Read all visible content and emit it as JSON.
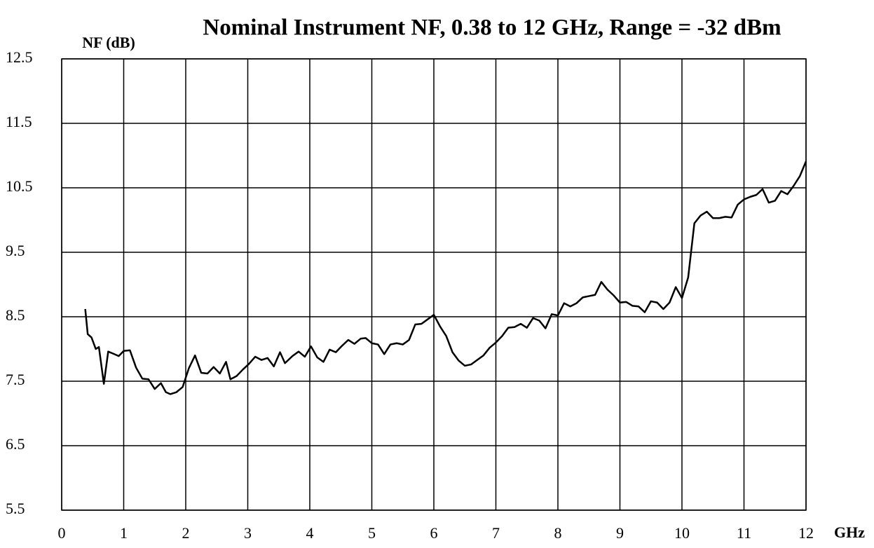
{
  "chart_data": {
    "type": "line",
    "title": "Nominal Instrument NF, 0.38 to 12 GHz, Range = -32 dBm",
    "y_label": "NF (dB)",
    "x_label": "GHz",
    "xlim": [
      0,
      12
    ],
    "xticks": [
      0,
      1,
      2,
      3,
      4,
      5,
      6,
      7,
      8,
      9,
      10,
      11,
      12
    ],
    "ylim": [
      5.5,
      12.5
    ],
    "yticks": [
      5.5,
      6.5,
      7.5,
      8.5,
      9.5,
      10.5,
      11.5,
      12.5
    ],
    "grid": true,
    "series": [
      {
        "color": "#000000",
        "x": [
          0.38,
          0.42,
          0.48,
          0.55,
          0.6,
          0.68,
          0.75,
          0.85,
          0.92,
          1.0,
          1.1,
          1.2,
          1.3,
          1.4,
          1.5,
          1.6,
          1.68,
          1.75,
          1.85,
          1.95,
          2.05,
          2.15,
          2.25,
          2.35,
          2.45,
          2.55,
          2.65,
          2.72,
          2.82,
          2.92,
          3.02,
          3.12,
          3.22,
          3.32,
          3.42,
          3.52,
          3.6,
          3.72,
          3.82,
          3.92,
          4.02,
          4.12,
          4.22,
          4.32,
          4.42,
          4.52,
          4.62,
          4.72,
          4.82,
          4.9,
          5.0,
          5.1,
          5.2,
          5.3,
          5.4,
          5.5,
          5.6,
          5.7,
          5.8,
          5.9,
          6.0,
          6.1,
          6.2,
          6.3,
          6.4,
          6.5,
          6.6,
          6.7,
          6.8,
          6.9,
          7.0,
          7.1,
          7.2,
          7.3,
          7.4,
          7.5,
          7.6,
          7.7,
          7.8,
          7.9,
          8.0,
          8.1,
          8.2,
          8.3,
          8.4,
          8.5,
          8.6,
          8.7,
          8.8,
          8.9,
          9.0,
          9.1,
          9.2,
          9.3,
          9.4,
          9.5,
          9.6,
          9.7,
          9.8,
          9.9,
          10.0,
          10.1,
          10.2,
          10.3,
          10.4,
          10.5,
          10.6,
          10.7,
          10.8,
          10.9,
          11.0,
          11.1,
          11.2,
          11.3,
          11.4,
          11.5,
          11.6,
          11.7,
          11.8,
          11.9,
          12.0
        ],
        "values": [
          8.62,
          8.23,
          8.18,
          8.0,
          8.03,
          7.46,
          7.96,
          7.92,
          7.89,
          7.97,
          7.98,
          7.71,
          7.54,
          7.53,
          7.38,
          7.47,
          7.33,
          7.3,
          7.33,
          7.41,
          7.7,
          7.9,
          7.63,
          7.62,
          7.72,
          7.62,
          7.8,
          7.53,
          7.58,
          7.68,
          7.77,
          7.88,
          7.83,
          7.86,
          7.73,
          7.95,
          7.78,
          7.89,
          7.96,
          7.88,
          8.04,
          7.87,
          7.8,
          7.99,
          7.95,
          8.05,
          8.14,
          8.08,
          8.16,
          8.17,
          8.09,
          8.07,
          7.92,
          8.07,
          8.09,
          8.07,
          8.14,
          8.38,
          8.39,
          8.46,
          8.53,
          8.35,
          8.2,
          7.95,
          7.82,
          7.74,
          7.76,
          7.83,
          7.9,
          8.02,
          8.1,
          8.2,
          8.33,
          8.34,
          8.39,
          8.33,
          8.48,
          8.44,
          8.32,
          8.54,
          8.52,
          8.71,
          8.66,
          8.71,
          8.8,
          8.82,
          8.84,
          9.04,
          8.92,
          8.83,
          8.72,
          8.73,
          8.67,
          8.66,
          8.57,
          8.74,
          8.72,
          8.62,
          8.72,
          8.96,
          8.79,
          9.11,
          9.95,
          10.07,
          10.13,
          10.03,
          10.03,
          10.05,
          10.04,
          10.24,
          10.32,
          10.36,
          10.39,
          10.48,
          10.27,
          10.3,
          10.45,
          10.4,
          10.53,
          10.68,
          10.91
        ]
      }
    ]
  }
}
